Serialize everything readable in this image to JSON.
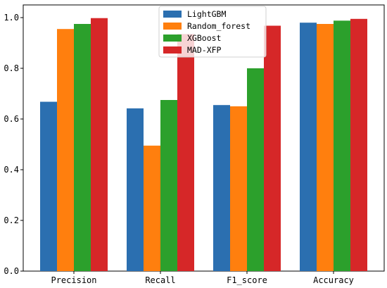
{
  "chart_data": {
    "type": "bar",
    "categories": [
      "Precision",
      "Recall",
      "F1_score",
      "Accuracy"
    ],
    "series": [
      {
        "name": "LightGBM",
        "color": "#2b6fb0",
        "values": [
          0.668,
          0.642,
          0.655,
          0.98
        ]
      },
      {
        "name": "Random_forest",
        "color": "#ff7f0e",
        "values": [
          0.955,
          0.495,
          0.65,
          0.975
        ]
      },
      {
        "name": "XGBoost",
        "color": "#2ca02c",
        "values": [
          0.975,
          0.675,
          0.8,
          0.988
        ]
      },
      {
        "name": "MAD-XFP",
        "color": "#d62728",
        "values": [
          0.998,
          0.935,
          0.968,
          0.995
        ]
      }
    ],
    "yticks": [
      "0.0",
      "0.2",
      "0.4",
      "0.6",
      "0.8",
      "1.0"
    ],
    "ylim": [
      0,
      1.05
    ],
    "grid": false,
    "legend_position": "top-center"
  }
}
